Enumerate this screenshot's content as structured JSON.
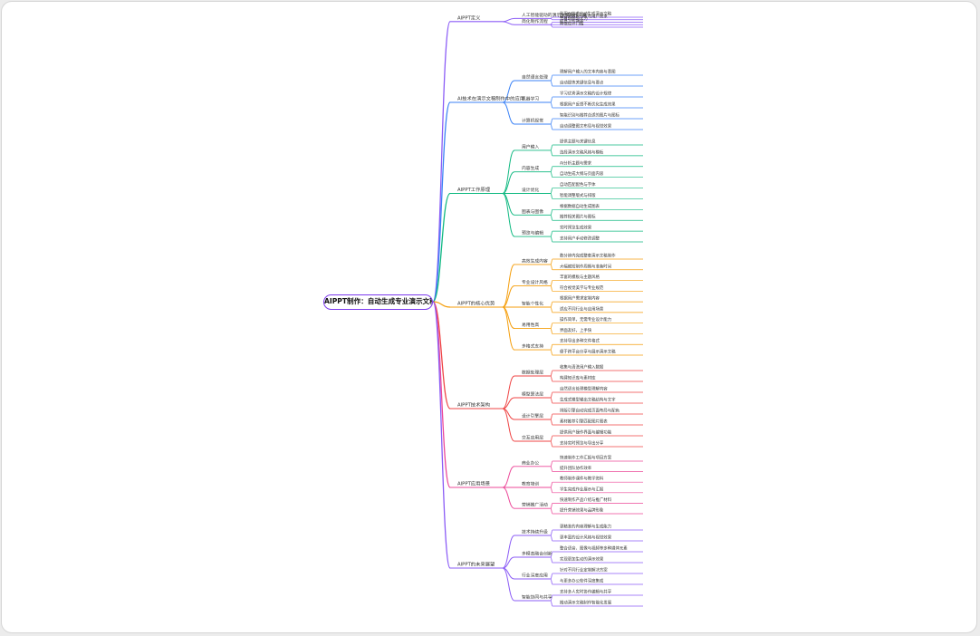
{
  "root": {
    "label": "AIPPT制作：自动生成专业演示文稿"
  },
  "branches": [
    {
      "label": "AIPPT定义",
      "color": "#8b5cf6",
      "children": [
        {
          "label": "人工智能驱动的演示文稿制作工具",
          "items": [
            "利用AI技术自动生成演示文稿",
            "结合大数据分析与用户需求"
          ]
        },
        {
          "label": "简化制作流程",
          "items": [
            "节省时间与人力",
            "提高工作效率",
            "降低设计门槛"
          ]
        }
      ]
    },
    {
      "label": "AI技术在演示文稿制作中的应用",
      "color": "#3b82f6",
      "children": [
        {
          "label": "自然语言处理",
          "items": [
            "理解用户输入的文本内容与意图",
            "自动提炼关键信息与要点"
          ]
        },
        {
          "label": "机器学习",
          "items": [
            "学习优秀演示文稿的设计规律",
            "根据用户反馈不断优化生成效果"
          ]
        },
        {
          "label": "计算机视觉",
          "items": [
            "智能识别与推荐合适的图片与图标",
            "自动调整图文布局与视觉效果"
          ]
        }
      ]
    },
    {
      "label": "AIPPT工作原理",
      "color": "#10b981",
      "children": [
        {
          "label": "用户输入",
          "items": [
            "提供主题与关键信息",
            "选择演示文稿风格与模板"
          ]
        },
        {
          "label": "内容生成",
          "items": [
            "AI分析主题与需求",
            "自动生成大纲与页面内容"
          ]
        },
        {
          "label": "设计优化",
          "items": [
            "自动匹配配色与字体",
            "智能调整版式与排版"
          ]
        },
        {
          "label": "图表与图像",
          "items": [
            "根据数据自动生成图表",
            "推荐相关图片与图标"
          ]
        },
        {
          "label": "预览与编辑",
          "items": [
            "实时预览生成效果",
            "支持用户手动修改调整"
          ]
        }
      ]
    },
    {
      "label": "AIPPT的核心优势",
      "color": "#f59e0b",
      "children": [
        {
          "label": "高效生成内容",
          "items": [
            "数分钟内完成整套演示文稿制作",
            "大幅缩短制作周期与准备时间"
          ]
        },
        {
          "label": "专业设计风格",
          "items": [
            "丰富的模板与主题风格",
            "符合视觉美学与专业规范"
          ]
        },
        {
          "label": "智能个性化",
          "items": [
            "根据用户需求定制内容",
            "适应不同行业与应用场景"
          ]
        },
        {
          "label": "易用性高",
          "items": [
            "操作简单，无需专业设计能力",
            "界面友好，上手快"
          ]
        },
        {
          "label": "多格式支持",
          "items": [
            "支持导出多种文件格式",
            "便于跨平台分享与展示演示文稿"
          ]
        }
      ]
    },
    {
      "label": "AIPPT技术架构",
      "color": "#ef4444",
      "children": [
        {
          "label": "数据处理层",
          "items": [
            "收集与清洗用户输入数据",
            "构建知识库与素材库"
          ]
        },
        {
          "label": "模型算法层",
          "items": [
            "自然语言处理模型理解内容",
            "生成式模型输出文稿结构与文字"
          ]
        },
        {
          "label": "设计引擎层",
          "items": [
            "排版引擎自动完成页面布局与配色",
            "素材推荐引擎匹配图片图表"
          ]
        },
        {
          "label": "交互应用层",
          "items": [
            "提供用户操作界面与编辑功能",
            "支持实时预览与导出分享"
          ]
        }
      ]
    },
    {
      "label": "AIPPT应用场景",
      "color": "#ec4899",
      "children": [
        {
          "label": "商业办公",
          "items": [
            "快速制作工作汇报与项目方案",
            "提升团队协作效率"
          ]
        },
        {
          "label": "教育培训",
          "items": [
            "教师制作课件与教学资料",
            "学生完成作业展示与汇报"
          ]
        },
        {
          "label": "营销推广活动",
          "items": [
            "快速制作产品介绍与推广材料",
            "提升营销效果与品牌形象"
          ]
        }
      ]
    },
    {
      "label": "AIPPT的未来展望",
      "color": "#8b5cf6",
      "children": [
        {
          "label": "技术持续升级",
          "items": [
            "更精准的内容理解与生成能力",
            "更丰富的设计风格与视觉效果"
          ]
        },
        {
          "label": "多模态融合创新",
          "items": [
            "整合语音、图像与视频等多种媒体元素",
            "实现更加生动的演示效果"
          ]
        },
        {
          "label": "行业深度应用",
          "items": [
            "针对不同行业定制解决方案",
            "与更多办公软件深度集成"
          ]
        },
        {
          "label": "智能协同与共享",
          "items": [
            "支持多人实时协作编辑与共享",
            "推动演示文稿制作智能化发展"
          ]
        }
      ]
    }
  ]
}
